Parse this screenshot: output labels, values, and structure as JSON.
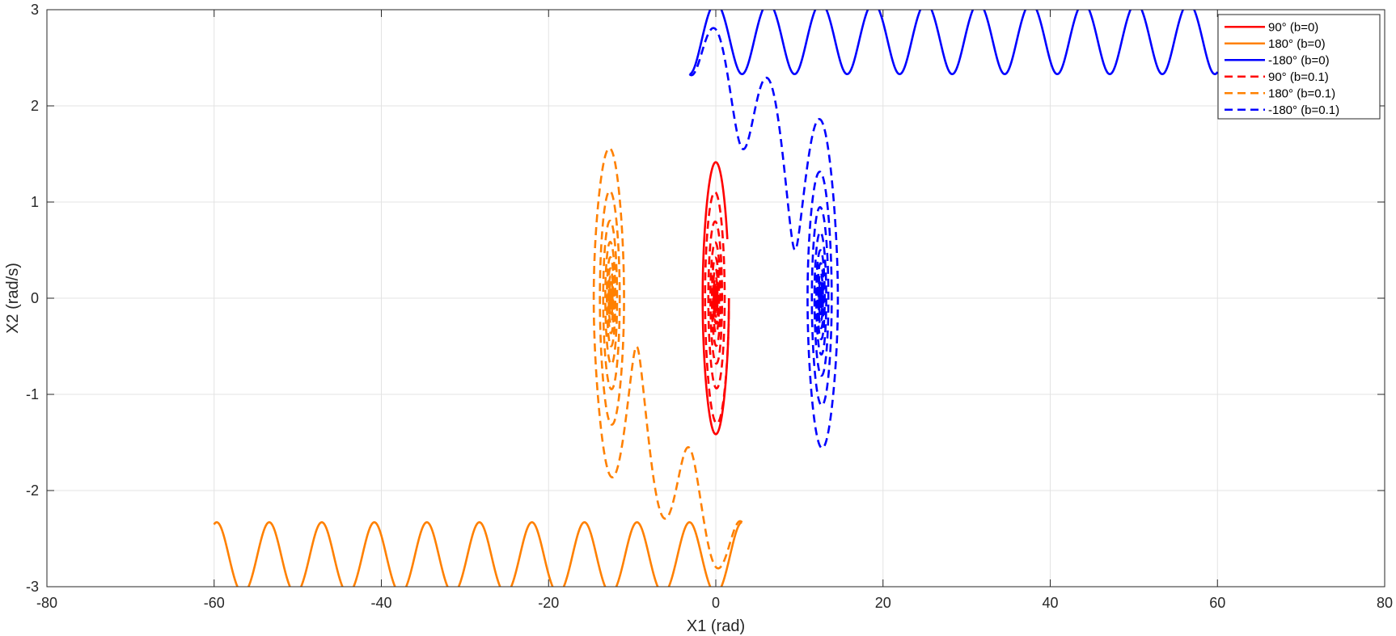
{
  "chart_data": {
    "type": "line",
    "title": "",
    "xlabel": "X1 (rad)",
    "ylabel": "X2 (rad/s)",
    "xlim": [
      -80,
      80
    ],
    "ylim": [
      -3,
      3
    ],
    "xticks": [
      -80,
      -60,
      -40,
      -20,
      0,
      20,
      40,
      60,
      80
    ],
    "yticks": [
      -3,
      -2,
      -1,
      0,
      1,
      2,
      3
    ],
    "xtick_labels": [
      "-80",
      "-60",
      "-40",
      "-20",
      "0",
      "20",
      "40",
      "60",
      "80"
    ],
    "ytick_labels": [
      "-3",
      "-2",
      "-1",
      "0",
      "1",
      "2",
      "3"
    ],
    "grid": true,
    "legend_position": "top-right",
    "series": [
      {
        "name": "90° (b=0)",
        "color": "#ff0000",
        "style": "solid",
        "description": "closed orbit around origin",
        "x_range": [
          -1.0,
          1.0
        ],
        "y_range": [
          -1.41,
          1.41
        ]
      },
      {
        "name": "180° (b=0)",
        "color": "#ff8000",
        "style": "solid",
        "description": "running trajectory, decreasing x1",
        "x_range": [
          -60,
          3.1
        ],
        "y_range": [
          -2.97,
          -2.2
        ]
      },
      {
        "name": "-180° (b=0)",
        "color": "#0000ff",
        "style": "solid",
        "description": "running trajectory, increasing x1",
        "x_range": [
          -3.1,
          60
        ],
        "y_range": [
          2.2,
          2.97
        ]
      },
      {
        "name": "90° (b=0.1)",
        "color": "#ff0000",
        "style": "dashed",
        "description": "damped spiral into origin",
        "x_range": [
          -1.3,
          1.1
        ],
        "y_range": [
          -1.3,
          1.1
        ]
      },
      {
        "name": "180° (b=0.1)",
        "color": "#ff8000",
        "style": "dashed",
        "description": "damped, settles into oscillation around x1 = -6.28",
        "x_range": [
          -9.4,
          4.0
        ],
        "y_range": [
          -2.65,
          1.76
        ]
      },
      {
        "name": "-180° (b=0.1)",
        "color": "#0000ff",
        "style": "dashed",
        "description": "damped, settles into oscillation around x1 = 6.28",
        "x_range": [
          -4.0,
          9.4
        ],
        "y_range": [
          -1.76,
          2.65
        ]
      }
    ],
    "legend": {
      "entries": [
        "90° (b=0)",
        "180° (b=0)",
        "-180° (b=0)",
        "90° (b=0.1)",
        "180° (b=0.1)",
        "-180° (b=0.1)"
      ]
    }
  }
}
